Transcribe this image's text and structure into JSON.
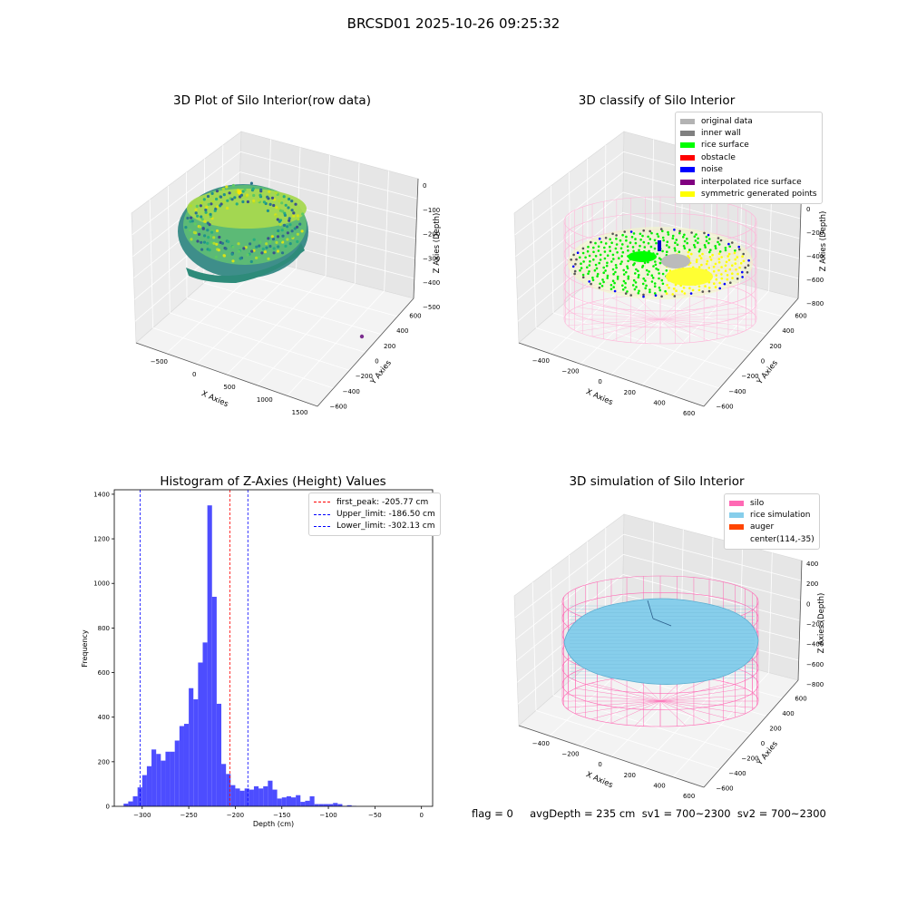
{
  "suptitle": "BRCSD01 2025-10-26 09:25:32",
  "status_line": "flag = 0     avgDepth = 235 cm  sv1 = 700~2300  sv2 = 700~2300",
  "chart_data": [
    {
      "type": "scatter3d",
      "title": "3D Plot of Silo Interior(row data)",
      "xlabel": "X Axies",
      "ylabel": "Y Axies",
      "zlabel": "Z Axies (Depth)",
      "xticks": [
        "−500",
        "0",
        "500",
        "1000",
        "1500"
      ],
      "yticks": [
        "−600",
        "−400",
        "−200",
        "0",
        "200",
        "400",
        "600"
      ],
      "zticks": [
        "−500",
        "−400",
        "−300",
        "−200",
        "−100",
        "0"
      ],
      "xlim": [
        -600,
        1700
      ],
      "ylim": [
        -700,
        700
      ],
      "zlim": [
        -500,
        0
      ],
      "colormap": "viridis",
      "outlier_point": {
        "x": 1500,
        "y": 300,
        "z": -500,
        "color": "#7b2d8e"
      },
      "grid": true
    },
    {
      "type": "scatter3d",
      "title": "3D classify of Silo Interior",
      "xlabel": "X Axies",
      "ylabel": "Y Axies",
      "zlabel": "Z Axies (Depth)",
      "xticks": [
        "−400",
        "−200",
        "0",
        "200",
        "400",
        "600"
      ],
      "yticks": [
        "−600",
        "−400",
        "−200",
        "0",
        "200",
        "400",
        "600"
      ],
      "zticks": [
        "−800",
        "−600",
        "−400",
        "−200",
        "0",
        "200"
      ],
      "xlim": [
        -500,
        700
      ],
      "ylim": [
        -700,
        700
      ],
      "zlim": [
        -900,
        300
      ],
      "legend_position": "top-right",
      "legend": [
        {
          "label": "original data",
          "color": "#b3b3b3"
        },
        {
          "label": "inner wall",
          "color": "#808080"
        },
        {
          "label": "rice surface",
          "color": "#00ff00"
        },
        {
          "label": "obstacle",
          "color": "#ff0000"
        },
        {
          "label": "noise",
          "color": "#0000ff"
        },
        {
          "label": "interpolated rice surface",
          "color": "#800080"
        },
        {
          "label": "symmetric generated points",
          "color": "#ffff00"
        }
      ],
      "grid": true
    },
    {
      "type": "bar",
      "title": "Histogram of Z-Axies (Height) Values",
      "xlabel": "Depth (cm)",
      "ylabel": "Frequency",
      "xlim": [
        -330,
        12
      ],
      "ylim": [
        0,
        1420
      ],
      "xticks": [
        -300,
        -250,
        -200,
        -150,
        -100,
        -50,
        0
      ],
      "yticks": [
        0,
        200,
        400,
        600,
        800,
        1000,
        1200,
        1400
      ],
      "bin_width": 5,
      "bins": [
        {
          "start": -320,
          "count": 12
        },
        {
          "start": -315,
          "count": 22
        },
        {
          "start": -310,
          "count": 45
        },
        {
          "start": -305,
          "count": 85
        },
        {
          "start": -300,
          "count": 140
        },
        {
          "start": -295,
          "count": 180
        },
        {
          "start": -290,
          "count": 255
        },
        {
          "start": -285,
          "count": 235
        },
        {
          "start": -280,
          "count": 205
        },
        {
          "start": -275,
          "count": 245
        },
        {
          "start": -270,
          "count": 245
        },
        {
          "start": -265,
          "count": 295
        },
        {
          "start": -260,
          "count": 360
        },
        {
          "start": -255,
          "count": 370
        },
        {
          "start": -250,
          "count": 530
        },
        {
          "start": -245,
          "count": 480
        },
        {
          "start": -240,
          "count": 645
        },
        {
          "start": -235,
          "count": 735
        },
        {
          "start": -230,
          "count": 1350
        },
        {
          "start": -225,
          "count": 940
        },
        {
          "start": -220,
          "count": 460
        },
        {
          "start": -215,
          "count": 190
        },
        {
          "start": -210,
          "count": 145
        },
        {
          "start": -205,
          "count": 95
        },
        {
          "start": -200,
          "count": 80
        },
        {
          "start": -195,
          "count": 70
        },
        {
          "start": -190,
          "count": 80
        },
        {
          "start": -185,
          "count": 75
        },
        {
          "start": -180,
          "count": 90
        },
        {
          "start": -175,
          "count": 80
        },
        {
          "start": -170,
          "count": 90
        },
        {
          "start": -165,
          "count": 115
        },
        {
          "start": -160,
          "count": 75
        },
        {
          "start": -155,
          "count": 35
        },
        {
          "start": -150,
          "count": 40
        },
        {
          "start": -145,
          "count": 45
        },
        {
          "start": -140,
          "count": 40
        },
        {
          "start": -135,
          "count": 50
        },
        {
          "start": -130,
          "count": 20
        },
        {
          "start": -125,
          "count": 25
        },
        {
          "start": -120,
          "count": 45
        },
        {
          "start": -115,
          "count": 10
        },
        {
          "start": -110,
          "count": 10
        },
        {
          "start": -105,
          "count": 10
        },
        {
          "start": -100,
          "count": 10
        },
        {
          "start": -95,
          "count": 15
        },
        {
          "start": -90,
          "count": 10
        },
        {
          "start": -85,
          "count": 2
        },
        {
          "start": -80,
          "count": 5
        },
        {
          "start": -75,
          "count": 2
        }
      ],
      "bar_color": "#4d4dff",
      "vlines": [
        {
          "label": "first_peak: -205.77 cm",
          "x": -205.77,
          "color": "#ff0000"
        },
        {
          "label": "Upper_limit: -186.50 cm",
          "x": -186.5,
          "color": "#0000ff"
        },
        {
          "label": "Lower_limit: -302.13 cm",
          "x": -302.13,
          "color": "#0000ff"
        }
      ],
      "legend_position": "top-right"
    },
    {
      "type": "surface3d",
      "title": "3D simulation of Silo Interior",
      "xlabel": "X Axies",
      "ylabel": "Y Axies",
      "zlabel": "Z Axies (Depth)",
      "xticks": [
        "−400",
        "−200",
        "0",
        "200",
        "400",
        "600"
      ],
      "yticks": [
        "−600",
        "−400",
        "−200",
        "0",
        "200",
        "400",
        "600"
      ],
      "zticks": [
        "−800",
        "−600",
        "−400",
        "−200",
        "0",
        "200",
        "400"
      ],
      "xlim": [
        -500,
        700
      ],
      "ylim": [
        -700,
        700
      ],
      "zlim": [
        -900,
        450
      ],
      "legend_position": "top-right",
      "legend": [
        {
          "label": "silo",
          "color": "#ff69b4"
        },
        {
          "label": "rice simulation",
          "color": "#87ceeb"
        },
        {
          "label": "auger",
          "color": "#ff4500"
        },
        {
          "label": "center(114,-35)",
          "color": "#ffffff"
        }
      ],
      "grid": true
    }
  ]
}
